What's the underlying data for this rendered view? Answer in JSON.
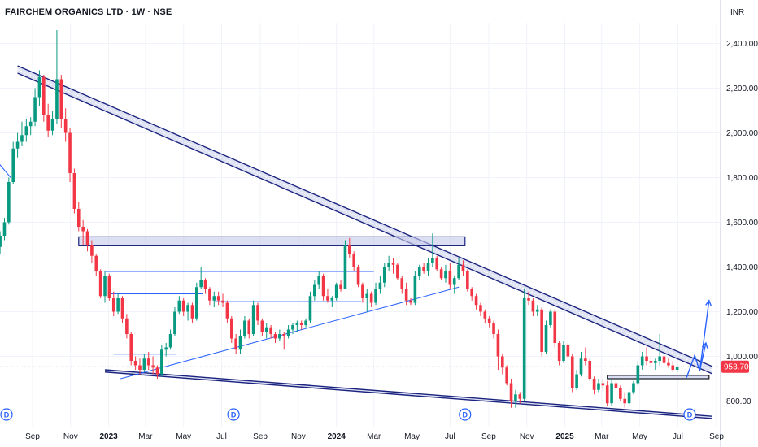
{
  "header": {
    "title": "FAIRCHEM ORGANICS LTD · 1W · NSE",
    "currency": "INR"
  },
  "colors": {
    "up": "#089981",
    "down": "#f23645",
    "trend": "#1a237e",
    "fill": "#c5cae9",
    "accent": "#2962ff"
  },
  "chart_data": {
    "type": "candlestick",
    "y_ticks": [
      "800.00",
      "1,000.00",
      "1,200.00",
      "1,400.00",
      "1,600.00",
      "1,800.00",
      "2,000.00",
      "2,200.00",
      "2,400.00"
    ],
    "y_tick_values": [
      800,
      1000,
      1200,
      1400,
      1600,
      1800,
      2000,
      2200,
      2400
    ],
    "ylim": [
      700,
      2500
    ],
    "x_ticks": [
      {
        "label": "Sep",
        "date": "2022-09-01",
        "bold": false
      },
      {
        "label": "Nov",
        "date": "2022-11-01",
        "bold": false
      },
      {
        "label": "2023",
        "date": "2023-01-01",
        "bold": true
      },
      {
        "label": "Mar",
        "date": "2023-03-01",
        "bold": false
      },
      {
        "label": "May",
        "date": "2023-05-01",
        "bold": false
      },
      {
        "label": "Jul",
        "date": "2023-07-01",
        "bold": false
      },
      {
        "label": "Sep",
        "date": "2023-09-01",
        "bold": false
      },
      {
        "label": "Nov",
        "date": "2023-11-01",
        "bold": false
      },
      {
        "label": "2024",
        "date": "2024-01-01",
        "bold": true
      },
      {
        "label": "Mar",
        "date": "2024-03-01",
        "bold": false
      },
      {
        "label": "May",
        "date": "2024-05-01",
        "bold": false
      },
      {
        "label": "Jul",
        "date": "2024-07-01",
        "bold": false
      },
      {
        "label": "Sep",
        "date": "2024-09-01",
        "bold": false
      },
      {
        "label": "Nov",
        "date": "2024-11-01",
        "bold": false
      },
      {
        "label": "2025",
        "date": "2025-01-01",
        "bold": true
      },
      {
        "label": "Mar",
        "date": "2025-03-01",
        "bold": false
      },
      {
        "label": "May",
        "date": "2025-05-01",
        "bold": false
      },
      {
        "label": "Jul",
        "date": "2025-07-01",
        "bold": false
      },
      {
        "label": "Sep",
        "date": "2025-09-01",
        "bold": false
      }
    ],
    "last_price": "953.70",
    "last_price_value": 953.7,
    "dividend_markers": [
      {
        "label": "D",
        "date": "2022-07-10"
      },
      {
        "label": "D",
        "date": "2023-07-20"
      },
      {
        "label": "D",
        "date": "2024-07-25"
      },
      {
        "label": "D",
        "date": "2025-07-20"
      }
    ],
    "candles": [
      [
        "2022-07-11",
        1490,
        1560,
        1460,
        1540
      ],
      [
        "2022-07-18",
        1540,
        1620,
        1520,
        1600
      ],
      [
        "2022-07-25",
        1600,
        1800,
        1590,
        1780
      ],
      [
        "2022-08-01",
        1780,
        1960,
        1770,
        1930
      ],
      [
        "2022-08-08",
        1930,
        2000,
        1890,
        1960
      ],
      [
        "2022-08-15",
        1960,
        2050,
        1940,
        1990
      ],
      [
        "2022-08-22",
        1990,
        2060,
        1960,
        2030
      ],
      [
        "2022-08-29",
        2030,
        2070,
        1990,
        2050
      ],
      [
        "2022-09-05",
        2050,
        2200,
        2030,
        2160
      ],
      [
        "2022-09-12",
        2160,
        2280,
        2120,
        2250
      ],
      [
        "2022-09-19",
        2250,
        2260,
        2050,
        2080
      ],
      [
        "2022-09-26",
        2080,
        2130,
        1980,
        2010
      ],
      [
        "2022-10-03",
        2010,
        2100,
        1990,
        2060
      ],
      [
        "2022-10-10",
        2060,
        2460,
        2040,
        2240
      ],
      [
        "2022-10-17",
        2240,
        2260,
        2020,
        2060
      ],
      [
        "2022-10-24",
        2060,
        2110,
        1960,
        2000
      ],
      [
        "2022-10-31",
        2000,
        2020,
        1780,
        1820
      ],
      [
        "2022-11-07",
        1820,
        1840,
        1640,
        1660
      ],
      [
        "2022-11-14",
        1660,
        1690,
        1560,
        1580
      ],
      [
        "2022-11-21",
        1580,
        1610,
        1500,
        1560
      ],
      [
        "2022-11-28",
        1560,
        1570,
        1470,
        1500
      ],
      [
        "2022-12-05",
        1500,
        1520,
        1420,
        1450
      ],
      [
        "2022-12-12",
        1450,
        1460,
        1360,
        1380
      ],
      [
        "2022-12-19",
        1380,
        1390,
        1260,
        1270
      ],
      [
        "2022-12-26",
        1270,
        1380,
        1240,
        1360
      ],
      [
        "2023-01-02",
        1360,
        1370,
        1250,
        1260
      ],
      [
        "2023-01-09",
        1260,
        1290,
        1180,
        1200
      ],
      [
        "2023-01-16",
        1200,
        1280,
        1190,
        1260
      ],
      [
        "2023-01-23",
        1260,
        1270,
        1150,
        1170
      ],
      [
        "2023-01-30",
        1170,
        1190,
        1080,
        1100
      ],
      [
        "2023-02-06",
        1100,
        1110,
        960,
        980
      ],
      [
        "2023-02-13",
        980,
        1000,
        940,
        960
      ],
      [
        "2023-02-20",
        960,
        990,
        920,
        940
      ],
      [
        "2023-02-27",
        940,
        1010,
        930,
        990
      ],
      [
        "2023-03-06",
        990,
        1020,
        940,
        960
      ],
      [
        "2023-03-13",
        960,
        1000,
        920,
        950
      ],
      [
        "2023-03-20",
        950,
        960,
        900,
        920
      ],
      [
        "2023-03-27",
        920,
        1050,
        910,
        1030
      ],
      [
        "2023-04-03",
        1030,
        1060,
        1000,
        1040
      ],
      [
        "2023-04-10",
        1040,
        1120,
        1030,
        1100
      ],
      [
        "2023-04-17",
        1100,
        1220,
        1090,
        1200
      ],
      [
        "2023-04-24",
        1200,
        1270,
        1190,
        1250
      ],
      [
        "2023-05-01",
        1250,
        1260,
        1180,
        1200
      ],
      [
        "2023-05-08",
        1200,
        1240,
        1160,
        1230
      ],
      [
        "2023-05-15",
        1230,
        1240,
        1150,
        1170
      ],
      [
        "2023-05-22",
        1170,
        1330,
        1160,
        1310
      ],
      [
        "2023-05-29",
        1310,
        1400,
        1300,
        1340
      ],
      [
        "2023-06-05",
        1340,
        1350,
        1280,
        1300
      ],
      [
        "2023-06-12",
        1300,
        1310,
        1230,
        1250
      ],
      [
        "2023-06-19",
        1250,
        1290,
        1220,
        1270
      ],
      [
        "2023-06-26",
        1270,
        1290,
        1230,
        1250
      ],
      [
        "2023-07-03",
        1250,
        1280,
        1220,
        1240
      ],
      [
        "2023-07-10",
        1240,
        1250,
        1150,
        1170
      ],
      [
        "2023-07-17",
        1170,
        1180,
        1060,
        1080
      ],
      [
        "2023-07-24",
        1080,
        1100,
        1010,
        1030
      ],
      [
        "2023-07-31",
        1030,
        1120,
        1010,
        1090
      ],
      [
        "2023-08-07",
        1090,
        1180,
        1080,
        1160
      ],
      [
        "2023-08-14",
        1160,
        1170,
        1080,
        1100
      ],
      [
        "2023-08-21",
        1100,
        1250,
        1090,
        1230
      ],
      [
        "2023-08-28",
        1230,
        1240,
        1140,
        1160
      ],
      [
        "2023-09-04",
        1160,
        1170,
        1090,
        1110
      ],
      [
        "2023-09-11",
        1110,
        1150,
        1080,
        1130
      ],
      [
        "2023-09-18",
        1130,
        1140,
        1080,
        1100
      ],
      [
        "2023-09-25",
        1100,
        1110,
        1060,
        1080
      ],
      [
        "2023-10-02",
        1080,
        1120,
        1070,
        1100
      ],
      [
        "2023-10-09",
        1100,
        1110,
        1030,
        1090
      ],
      [
        "2023-10-16",
        1090,
        1140,
        1080,
        1120
      ],
      [
        "2023-10-23",
        1120,
        1150,
        1100,
        1140
      ],
      [
        "2023-10-30",
        1140,
        1160,
        1110,
        1150
      ],
      [
        "2023-11-06",
        1150,
        1160,
        1120,
        1140
      ],
      [
        "2023-11-13",
        1140,
        1170,
        1130,
        1160
      ],
      [
        "2023-11-20",
        1160,
        1290,
        1150,
        1270
      ],
      [
        "2023-11-27",
        1270,
        1340,
        1250,
        1320
      ],
      [
        "2023-12-04",
        1320,
        1380,
        1300,
        1360
      ],
      [
        "2023-12-11",
        1360,
        1370,
        1250,
        1270
      ],
      [
        "2023-12-18",
        1270,
        1300,
        1240,
        1250
      ],
      [
        "2023-12-25",
        1250,
        1270,
        1220,
        1260
      ],
      [
        "2024-01-01",
        1260,
        1330,
        1250,
        1320
      ],
      [
        "2024-01-08",
        1320,
        1340,
        1290,
        1300
      ],
      [
        "2024-01-15",
        1300,
        1520,
        1300,
        1500
      ],
      [
        "2024-01-22",
        1500,
        1530,
        1440,
        1460
      ],
      [
        "2024-01-29",
        1460,
        1470,
        1380,
        1400
      ],
      [
        "2024-02-05",
        1400,
        1410,
        1310,
        1320
      ],
      [
        "2024-02-12",
        1320,
        1330,
        1240,
        1260
      ],
      [
        "2024-02-19",
        1260,
        1300,
        1200,
        1280
      ],
      [
        "2024-02-26",
        1280,
        1290,
        1220,
        1240
      ],
      [
        "2024-03-04",
        1240,
        1330,
        1230,
        1300
      ],
      [
        "2024-03-11",
        1300,
        1360,
        1280,
        1330
      ],
      [
        "2024-03-18",
        1330,
        1420,
        1310,
        1400
      ],
      [
        "2024-03-25",
        1400,
        1450,
        1380,
        1420
      ],
      [
        "2024-04-01",
        1420,
        1440,
        1370,
        1410
      ],
      [
        "2024-04-08",
        1410,
        1420,
        1340,
        1350
      ],
      [
        "2024-04-15",
        1350,
        1360,
        1280,
        1300
      ],
      [
        "2024-04-22",
        1300,
        1330,
        1230,
        1250
      ],
      [
        "2024-04-29",
        1250,
        1260,
        1230,
        1240
      ],
      [
        "2024-05-06",
        1240,
        1380,
        1230,
        1360
      ],
      [
        "2024-05-13",
        1360,
        1410,
        1340,
        1400
      ],
      [
        "2024-05-20",
        1400,
        1420,
        1370,
        1380
      ],
      [
        "2024-05-27",
        1380,
        1440,
        1360,
        1420
      ],
      [
        "2024-06-03",
        1420,
        1550,
        1400,
        1440
      ],
      [
        "2024-06-10",
        1440,
        1450,
        1380,
        1390
      ],
      [
        "2024-06-17",
        1390,
        1400,
        1340,
        1350
      ],
      [
        "2024-06-24",
        1350,
        1410,
        1330,
        1380
      ],
      [
        "2024-07-01",
        1380,
        1420,
        1300,
        1320
      ],
      [
        "2024-07-08",
        1320,
        1360,
        1280,
        1350
      ],
      [
        "2024-07-15",
        1350,
        1440,
        1340,
        1410
      ],
      [
        "2024-07-22",
        1410,
        1430,
        1360,
        1380
      ],
      [
        "2024-07-29",
        1380,
        1390,
        1290,
        1300
      ],
      [
        "2024-08-05",
        1300,
        1310,
        1250,
        1270
      ],
      [
        "2024-08-12",
        1270,
        1280,
        1210,
        1230
      ],
      [
        "2024-08-19",
        1230,
        1240,
        1180,
        1200
      ],
      [
        "2024-08-26",
        1200,
        1210,
        1150,
        1170
      ],
      [
        "2024-09-02",
        1170,
        1180,
        1130,
        1150
      ],
      [
        "2024-09-09",
        1150,
        1160,
        1080,
        1100
      ],
      [
        "2024-09-16",
        1100,
        1120,
        940,
        1000
      ],
      [
        "2024-09-23",
        1000,
        1010,
        920,
        950
      ],
      [
        "2024-09-30",
        950,
        960,
        870,
        880
      ],
      [
        "2024-10-07",
        880,
        900,
        770,
        800
      ],
      [
        "2024-10-14",
        800,
        850,
        770,
        830
      ],
      [
        "2024-10-21",
        830,
        840,
        790,
        810
      ],
      [
        "2024-10-28",
        810,
        1300,
        800,
        1260
      ],
      [
        "2024-11-04",
        1260,
        1290,
        1230,
        1250
      ],
      [
        "2024-11-11",
        1250,
        1260,
        1180,
        1200
      ],
      [
        "2024-11-18",
        1200,
        1230,
        1180,
        1210
      ],
      [
        "2024-11-25",
        1210,
        1220,
        1000,
        1020
      ],
      [
        "2024-12-02",
        1020,
        1160,
        1010,
        1140
      ],
      [
        "2024-12-09",
        1140,
        1210,
        1130,
        1200
      ],
      [
        "2024-12-16",
        1200,
        1210,
        1040,
        1060
      ],
      [
        "2024-12-23",
        1060,
        1070,
        960,
        980
      ],
      [
        "2024-12-30",
        980,
        1070,
        970,
        1050
      ],
      [
        "2025-01-06",
        1050,
        1060,
        990,
        1000
      ],
      [
        "2025-01-13",
        1000,
        1010,
        840,
        860
      ],
      [
        "2025-01-20",
        860,
        940,
        850,
        920
      ],
      [
        "2025-01-27",
        920,
        1020,
        910,
        990
      ],
      [
        "2025-02-03",
        990,
        1040,
        960,
        980
      ],
      [
        "2025-02-10",
        980,
        990,
        890,
        900
      ],
      [
        "2025-02-17",
        900,
        910,
        830,
        850
      ],
      [
        "2025-02-24",
        850,
        900,
        840,
        880
      ],
      [
        "2025-03-03",
        880,
        900,
        850,
        870
      ],
      [
        "2025-03-10",
        870,
        890,
        780,
        790
      ],
      [
        "2025-03-17",
        790,
        900,
        780,
        880
      ],
      [
        "2025-03-24",
        880,
        890,
        850,
        860
      ],
      [
        "2025-03-31",
        860,
        870,
        800,
        810
      ],
      [
        "2025-04-07",
        810,
        840,
        770,
        790
      ],
      [
        "2025-04-14",
        790,
        850,
        780,
        840
      ],
      [
        "2025-04-21",
        840,
        890,
        830,
        880
      ],
      [
        "2025-04-28",
        880,
        980,
        870,
        960
      ],
      [
        "2025-05-05",
        960,
        1020,
        940,
        1000
      ],
      [
        "2025-05-12",
        1000,
        1040,
        960,
        980
      ],
      [
        "2025-05-19",
        980,
        1000,
        950,
        970
      ],
      [
        "2025-05-26",
        970,
        990,
        940,
        980
      ],
      [
        "2025-06-02",
        980,
        1100,
        960,
        1000
      ],
      [
        "2025-06-09",
        1000,
        1010,
        960,
        970
      ],
      [
        "2025-06-16",
        970,
        990,
        950,
        960
      ],
      [
        "2025-06-23",
        960,
        980,
        930,
        940
      ],
      [
        "2025-06-30",
        940,
        960,
        930,
        953.7
      ]
    ],
    "drawings": {
      "upper_channel": {
        "from": [
          "2022-08-08",
          2300
        ],
        "to": [
          "2025-08-25",
          955
        ],
        "offset": 28
      },
      "lower_line": {
        "from": [
          "2022-12-26",
          940
        ],
        "to": [
          "2025-08-25",
          732
        ]
      },
      "lower_line2": {
        "from": [
          "2022-12-26",
          930
        ],
        "to": [
          "2025-08-25",
          722
        ]
      },
      "resistance_box": {
        "from": [
          "2022-11-14",
          1535
        ],
        "to": [
          "2024-07-25",
          1495
        ]
      },
      "support_box": {
        "from": [
          "2025-03-10",
          915
        ],
        "to": [
          "2025-08-20",
          900
        ]
      },
      "ascending_support": {
        "from": [
          "2023-01-20",
          900
        ],
        "to": [
          "2024-07-15",
          1310
        ]
      },
      "blue_segment_left": {
        "from": [
          "2022-07-10",
          1860
        ],
        "to": [
          "2022-07-28",
          1800
        ]
      },
      "h_lines": [
        {
          "from": [
            "2022-12-26",
            1380
          ],
          "to": [
            "2024-03-01",
            1380
          ]
        },
        {
          "from": [
            "2023-01-02",
            1280
          ],
          "to": [
            "2023-06-01",
            1280
          ]
        },
        {
          "from": [
            "2023-06-20",
            1245
          ],
          "to": [
            "2024-02-10",
            1245
          ]
        },
        {
          "from": [
            "2023-01-09",
            1010
          ],
          "to": [
            "2023-04-20",
            1010
          ]
        }
      ],
      "projection": [
        [
          "2025-07-15",
          905
        ],
        [
          "2025-07-28",
          1005
        ],
        [
          "2025-08-05",
          935
        ],
        [
          "2025-08-13",
          1100
        ],
        [
          "2025-08-20",
          1250
        ]
      ],
      "projection2": [
        [
          "2025-08-05",
          935
        ],
        [
          "2025-08-15",
          1060
        ]
      ]
    }
  }
}
